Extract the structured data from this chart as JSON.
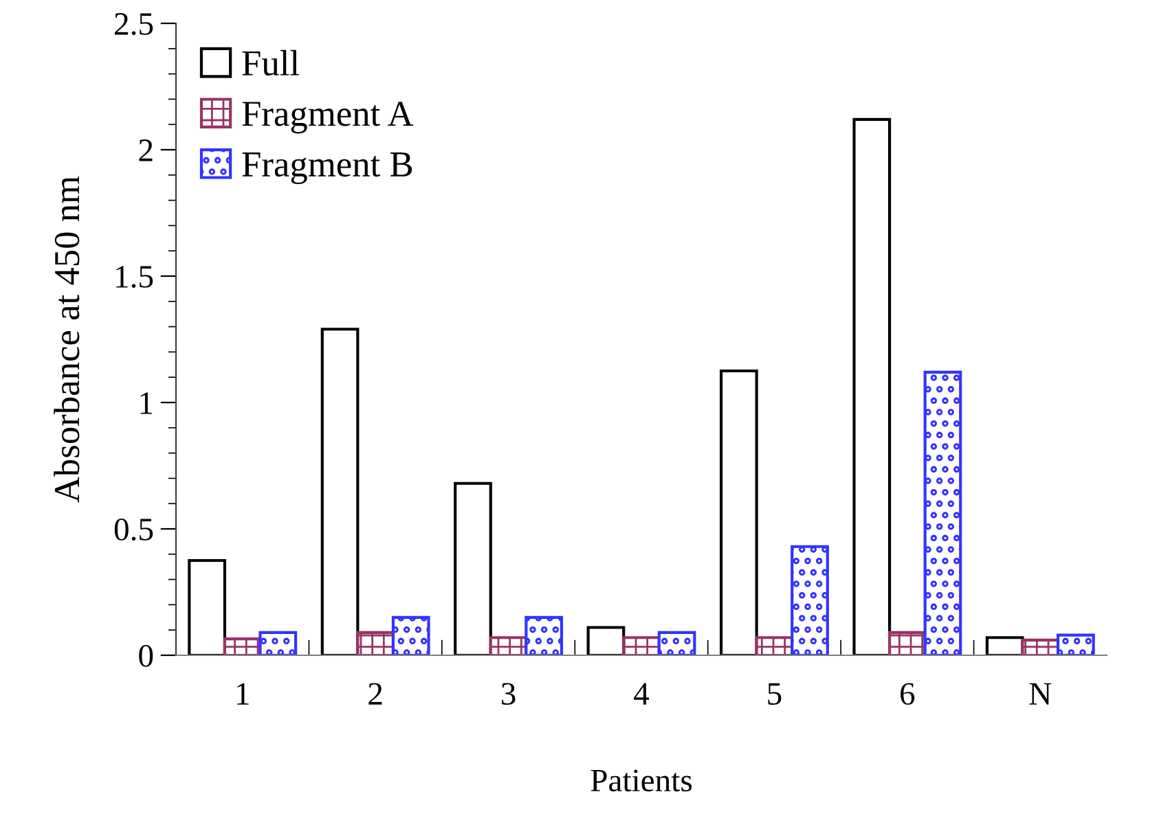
{
  "chart_data": {
    "type": "bar",
    "xlabel": "Patients",
    "ylabel": "Absorbance at 450 nm",
    "categories": [
      "1",
      "2",
      "3",
      "4",
      "5",
      "6",
      "N"
    ],
    "series": [
      {
        "name": "Full",
        "color": "#000000",
        "values": [
          0.375,
          1.29,
          0.68,
          0.11,
          1.125,
          2.12,
          0.07
        ]
      },
      {
        "name": "Fragment A",
        "color": "#993366",
        "values": [
          0.065,
          0.09,
          0.07,
          0.07,
          0.07,
          0.09,
          0.06
        ]
      },
      {
        "name": "Fragment B",
        "color": "#3333ff",
        "values": [
          0.09,
          0.15,
          0.15,
          0.09,
          0.43,
          1.12,
          0.08
        ]
      }
    ],
    "ylim": [
      0,
      2.5
    ],
    "yticks": [
      0,
      0.5,
      1,
      1.5,
      2,
      2.5
    ],
    "grid": false,
    "legend": "top left"
  }
}
